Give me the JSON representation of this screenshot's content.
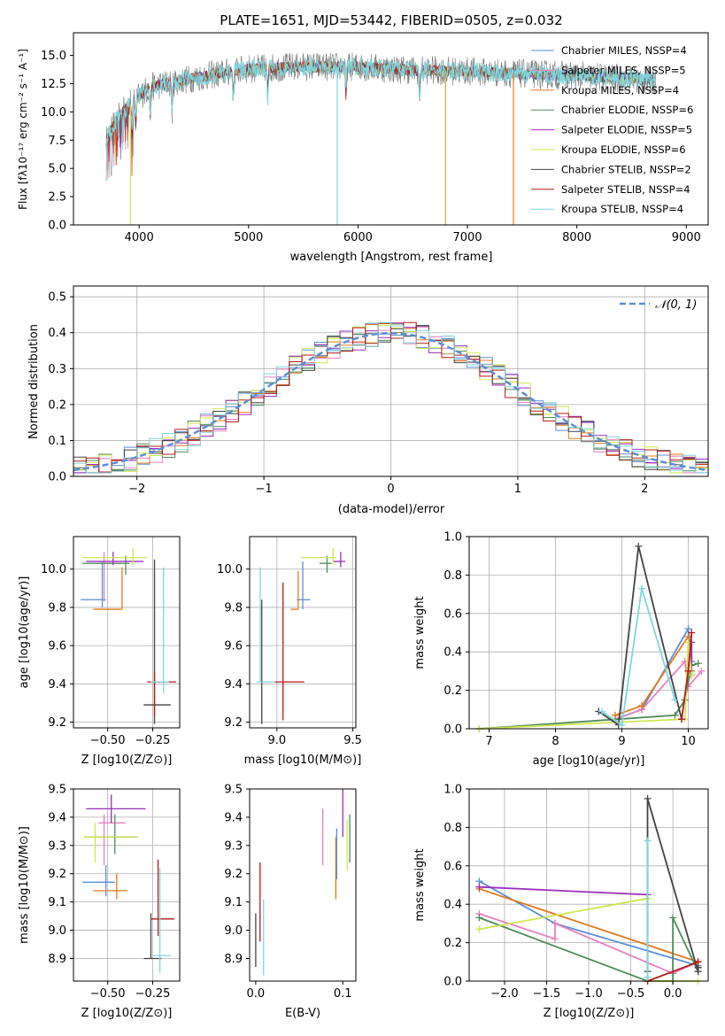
{
  "chart_data": [
    {
      "id": "spectrum",
      "type": "line",
      "title": "PLATE=1651, MJD=53442, FIBERID=0505, z=0.032",
      "xlabel": "wavelength [Angstrom, rest frame]",
      "ylabel": "Flux [fλ10⁻¹⁷ erg cm⁻² s⁻¹ A⁻¹]",
      "xlim": [
        3400,
        9200
      ],
      "ylim": [
        0,
        17
      ],
      "xticks": [
        "4000",
        "5000",
        "6000",
        "7000",
        "8000",
        "9000"
      ],
      "yticks": [
        "0.0",
        "2.5",
        "5.0",
        "7.5",
        "10.0",
        "12.5",
        "15.0"
      ],
      "legend": [
        {
          "name": "Chabrier MILES, NSSP=4",
          "color": "#5b8fd6"
        },
        {
          "name": "Salpeter MILES, NSSP=5",
          "color": "#e87fbf"
        },
        {
          "name": "Kroupa MILES, NSSP=4",
          "color": "#e07b1e"
        },
        {
          "name": "Chabrier ELODIE, NSSP=6",
          "color": "#4f8c58"
        },
        {
          "name": "Salpeter ELODIE, NSSP=5",
          "color": "#9b2fb8"
        },
        {
          "name": "Kroupa ELODIE, NSSP=6",
          "color": "#cfe64f"
        },
        {
          "name": "Chabrier STELIB, NSSP=2",
          "color": "#444444"
        },
        {
          "name": "Salpeter STELIB, NSSP=4",
          "color": "#b51a1a"
        },
        {
          "name": "Kroupa STELIB, NSSP=4",
          "color": "#7fd6dd"
        }
      ],
      "series_trend": {
        "x": [
          3700,
          3800,
          3950,
          4100,
          4500,
          5000,
          5500,
          6000,
          6500,
          7000,
          7420,
          8000,
          8500,
          8700
        ],
        "y": [
          7.5,
          9.5,
          11.0,
          12.2,
          13.0,
          13.8,
          14.0,
          14.0,
          13.7,
          13.6,
          13.4,
          13.2,
          12.9,
          12.8
        ]
      },
      "legend_position": "upper right"
    },
    {
      "id": "residual-histogram",
      "type": "histogram",
      "xlabel": "(data-model)/error",
      "ylabel": "Normed distribution",
      "xlim": [
        -2.5,
        2.5
      ],
      "ylim": [
        0,
        0.53
      ],
      "xticks": [
        "−2",
        "−1",
        "0",
        "1",
        "2"
      ],
      "yticks": [
        "0.0",
        "0.1",
        "0.2",
        "0.3",
        "0.4",
        "0.5"
      ],
      "legend": [
        {
          "name": "𝒩(0, 1)",
          "color": "#5b8fd6",
          "style": "dashed"
        }
      ],
      "legend_position": "upper right",
      "bin_width": 0.1,
      "grid": true
    },
    {
      "id": "age-vs-Z",
      "type": "errorbar",
      "xlabel": "Z [log10(Z/Z⊙)]",
      "ylabel": "age  [log10(age/yr)]",
      "xlim": [
        -0.69,
        -0.1
      ],
      "ylim": [
        9.17,
        10.17
      ],
      "xticks": [
        "−0.50",
        "−0.25"
      ],
      "yticks": [
        "9.2",
        "9.4",
        "9.6",
        "9.8",
        "10.0"
      ],
      "points": [
        {
          "color": "#5b8fd6",
          "x": -0.53,
          "y": 9.84,
          "xerr": [
            0.12,
            0.02
          ],
          "yerr": [
            0.04,
            0.2
          ]
        },
        {
          "color": "#e87fbf",
          "x": -0.52,
          "y": 10.03,
          "xerr": [
            0.04,
            0.1
          ],
          "yerr": [
            0.2,
            0.06
          ]
        },
        {
          "color": "#e07b1e",
          "x": -0.42,
          "y": 9.79,
          "xerr": [
            0.16,
            0.0
          ],
          "yerr": [
            0.0,
            0.22
          ]
        },
        {
          "color": "#4f8c58",
          "x": -0.4,
          "y": 10.03,
          "xerr": [
            0.24,
            0.02
          ],
          "yerr": [
            0.06,
            0.04
          ]
        },
        {
          "color": "#9b2fb8",
          "x": -0.47,
          "y": 10.04,
          "xerr": [
            0.15,
            0.17
          ],
          "yerr": [
            0.02,
            0.05
          ]
        },
        {
          "color": "#cfe64f",
          "x": -0.36,
          "y": 10.06,
          "xerr": [
            0.28,
            0.08
          ],
          "yerr": [
            0.04,
            0.05
          ]
        },
        {
          "color": "#444444",
          "x": -0.24,
          "y": 9.29,
          "xerr": [
            0.06,
            0.09
          ],
          "yerr": [
            0.1,
            0.76
          ]
        },
        {
          "color": "#b51a1a",
          "x": -0.24,
          "y": 9.41,
          "xerr": [
            0.04,
            0.12
          ],
          "yerr": [
            0.18,
            0.05
          ]
        },
        {
          "color": "#7fd6dd",
          "x": -0.19,
          "y": 9.41,
          "xerr": [
            0.07,
            0.03
          ],
          "yerr": [
            0.06,
            0.6
          ]
        }
      ]
    },
    {
      "id": "age-vs-mass",
      "type": "errorbar",
      "xlabel": "mass [log10(M/M⊙)]",
      "ylabel": "",
      "xlim": [
        8.82,
        9.52
      ],
      "ylim": [
        9.17,
        10.17
      ],
      "xticks": [
        "9.0",
        "9.5"
      ],
      "yticks": [
        "9.2",
        "9.4",
        "9.6",
        "9.8",
        "10.0"
      ],
      "points": [
        {
          "color": "#5b8fd6",
          "x": 9.17,
          "y": 9.84,
          "xerr": [
            0.04,
            0.05
          ],
          "yerr": [
            0.05,
            0.2
          ]
        },
        {
          "color": "#e07b1e",
          "x": 9.14,
          "y": 9.79,
          "xerr": [
            0.05,
            0.0
          ],
          "yerr": [
            0.0,
            0.2
          ]
        },
        {
          "color": "#4f8c58",
          "x": 9.33,
          "y": 10.03,
          "xerr": [
            0.05,
            0.03
          ],
          "yerr": [
            0.05,
            0.04
          ]
        },
        {
          "color": "#9b2fb8",
          "x": 9.42,
          "y": 10.04,
          "xerr": [
            0.05,
            0.03
          ],
          "yerr": [
            0.03,
            0.05
          ]
        },
        {
          "color": "#cfe64f",
          "x": 9.37,
          "y": 10.06,
          "xerr": [
            0.21,
            0.02
          ],
          "yerr": [
            0.04,
            0.05
          ]
        },
        {
          "color": "#444444",
          "x": 8.9,
          "y": 9.29,
          "xerr": [
            0.0,
            0.0
          ],
          "yerr": [
            0.1,
            0.55
          ]
        },
        {
          "color": "#b51a1a",
          "x": 9.04,
          "y": 9.41,
          "xerr": [
            0.06,
            0.14
          ],
          "yerr": [
            0.2,
            0.52
          ]
        },
        {
          "color": "#7fd6dd",
          "x": 8.89,
          "y": 9.41,
          "xerr": [
            0.02,
            0.1
          ],
          "yerr": [
            0.0,
            0.6
          ]
        }
      ]
    },
    {
      "id": "mass-weight-vs-age",
      "type": "line",
      "xlabel": "age  [log10(age/yr)]",
      "ylabel": "mass weight",
      "xlim": [
        6.7,
        10.3
      ],
      "ylim": [
        0,
        1
      ],
      "xticks": [
        "7",
        "8",
        "9",
        "10"
      ],
      "yticks": [
        "0.0",
        "0.2",
        "0.4",
        "0.6",
        "0.8",
        "1.0"
      ],
      "series": [
        {
          "color": "#5b8fd6",
          "x": [
            8.9,
            9.3,
            10.0,
            10.05
          ],
          "y": [
            0.05,
            0.1,
            0.52,
            0.35
          ]
        },
        {
          "color": "#e87fbf",
          "x": [
            8.9,
            9.3,
            9.95,
            10.0,
            10.2
          ],
          "y": [
            0.05,
            0.1,
            0.35,
            0.22,
            0.3
          ]
        },
        {
          "color": "#e07b1e",
          "x": [
            8.9,
            9.3,
            10.0,
            10.05
          ],
          "y": [
            0.07,
            0.12,
            0.48,
            0.3
          ]
        },
        {
          "color": "#4f8c58",
          "x": [
            6.85,
            9.8,
            9.95,
            10.05,
            10.15
          ],
          "y": [
            0.0,
            0.07,
            0.15,
            0.33,
            0.34
          ]
        },
        {
          "color": "#9b2fb8",
          "x": [
            10.05,
            10.05
          ],
          "y": [
            0.28,
            0.45
          ]
        },
        {
          "color": "#cfe64f",
          "x": [
            6.85,
            9.95,
            10.0,
            10.05
          ],
          "y": [
            0.0,
            0.05,
            0.45,
            0.28
          ]
        },
        {
          "color": "#444444",
          "x": [
            8.65,
            8.95,
            9.25,
            9.9
          ],
          "y": [
            0.09,
            0.02,
            0.95,
            0.05
          ]
        },
        {
          "color": "#b51a1a",
          "x": [
            9.9,
            10.0,
            10.05
          ],
          "y": [
            0.05,
            0.3,
            0.5
          ]
        },
        {
          "color": "#7fd6dd",
          "x": [
            8.7,
            9.0,
            9.3,
            9.8
          ],
          "y": [
            0.09,
            0.02,
            0.73,
            0.15
          ]
        }
      ]
    },
    {
      "id": "mass-vs-Z",
      "type": "errorbar",
      "xlabel": "Z [log10(Z/Z⊙)]",
      "ylabel": "mass [log10(M/M⊙)]",
      "xlim": [
        -0.69,
        -0.1
      ],
      "ylim": [
        8.82,
        9.5
      ],
      "xticks": [
        "−0.50",
        "−0.25"
      ],
      "yticks": [
        "8.9",
        "9.0",
        "9.1",
        "9.2",
        "9.3",
        "9.4",
        "9.5"
      ],
      "points": [
        {
          "color": "#5b8fd6",
          "x": -0.51,
          "y": 9.17,
          "xerr": [
            0.13,
            0.05
          ],
          "yerr": [
            0.05,
            0.06
          ]
        },
        {
          "color": "#e87fbf",
          "x": -0.52,
          "y": 9.38,
          "xerr": [
            0.03,
            0.12
          ],
          "yerr": [
            0.15,
            0.03
          ]
        },
        {
          "color": "#e07b1e",
          "x": -0.45,
          "y": 9.14,
          "xerr": [
            0.13,
            0.06
          ],
          "yerr": [
            0.03,
            0.06
          ]
        },
        {
          "color": "#4f8c58",
          "x": -0.46,
          "y": 9.33,
          "xerr": [
            0.17,
            0.12
          ],
          "yerr": [
            0.06,
            0.08
          ]
        },
        {
          "color": "#9b2fb8",
          "x": -0.48,
          "y": 9.43,
          "xerr": [
            0.14,
            0.19
          ],
          "yerr": [
            0.05,
            0.05
          ]
        },
        {
          "color": "#cfe64f",
          "x": -0.57,
          "y": 9.33,
          "xerr": [
            0.06,
            0.24
          ],
          "yerr": [
            0.09,
            0.05
          ]
        },
        {
          "color": "#444444",
          "x": -0.26,
          "y": 8.9,
          "xerr": [
            0.04,
            0.06
          ],
          "yerr": [
            0.0,
            0.16
          ]
        },
        {
          "color": "#b51a1a",
          "x": -0.22,
          "y": 9.04,
          "xerr": [
            0.04,
            0.09
          ],
          "yerr": [
            0.06,
            0.21
          ]
        },
        {
          "color": "#7fd6dd",
          "x": -0.21,
          "y": 8.91,
          "xerr": [
            0.04,
            0.06
          ],
          "yerr": [
            0.06,
            0.31
          ]
        }
      ]
    },
    {
      "id": "mass-vs-ebv",
      "type": "errorbar",
      "xlabel": "E(B-V)",
      "ylabel": "",
      "xlim": [
        -0.007,
        0.115
      ],
      "ylim": [
        8.82,
        9.5
      ],
      "xticks": [
        "0.0",
        "0.1"
      ],
      "yticks": [
        "8.9",
        "9.0",
        "9.1",
        "9.2",
        "9.3",
        "9.4",
        "9.5"
      ],
      "points": [
        {
          "color": "#444444",
          "x": 0.0,
          "y": 8.9,
          "yerr": [
            0.03,
            0.16
          ]
        },
        {
          "color": "#b51a1a",
          "x": 0.005,
          "y": 9.04,
          "yerr": [
            0.08,
            0.2
          ]
        },
        {
          "color": "#7fd6dd",
          "x": 0.009,
          "y": 8.91,
          "yerr": [
            0.07,
            0.2
          ]
        },
        {
          "color": "#e87fbf",
          "x": 0.077,
          "y": 9.34,
          "yerr": [
            0.11,
            0.09
          ]
        },
        {
          "color": "#e07b1e",
          "x": 0.092,
          "y": 9.2,
          "yerr": [
            0.09,
            0.13
          ]
        },
        {
          "color": "#5b8fd6",
          "x": 0.093,
          "y": 9.27,
          "yerr": [
            0.09,
            0.09
          ]
        },
        {
          "color": "#9b2fb8",
          "x": 0.1,
          "y": 9.43,
          "yerr": [
            0.1,
            0.07
          ]
        },
        {
          "color": "#cfe64f",
          "x": 0.105,
          "y": 9.3,
          "yerr": [
            0.09,
            0.09
          ]
        },
        {
          "color": "#4f8c58",
          "x": 0.108,
          "y": 9.33,
          "yerr": [
            0.09,
            0.08
          ]
        }
      ]
    },
    {
      "id": "mass-weight-vs-Z",
      "type": "line",
      "xlabel": "Z [log10(Z/Z⊙)]",
      "ylabel": "mass weight",
      "xlim": [
        -2.42,
        0.42
      ],
      "ylim": [
        0,
        1
      ],
      "xticks": [
        "−2.0",
        "−1.5",
        "−1.0",
        "−0.5",
        "0.0"
      ],
      "yticks": [
        "0.0",
        "0.2",
        "0.4",
        "0.6",
        "0.8",
        "1.0"
      ],
      "series": [
        {
          "color": "#5b8fd6",
          "x": [
            -2.3,
            -1.4,
            0.3
          ],
          "y": [
            0.52,
            0.3,
            0.08
          ]
        },
        {
          "color": "#e87fbf",
          "x": [
            -2.3,
            -1.4,
            -1.4,
            0.0,
            0.3
          ],
          "y": [
            0.35,
            0.22,
            0.3,
            0.04,
            0.1
          ]
        },
        {
          "color": "#e07b1e",
          "x": [
            -2.3,
            0.3,
            0.3
          ],
          "y": [
            0.48,
            0.1,
            0.07
          ]
        },
        {
          "color": "#4f8c58",
          "x": [
            -2.3,
            -0.3,
            0.0,
            0.0,
            0.3
          ],
          "y": [
            0.33,
            0.0,
            0.0,
            0.33,
            0.05
          ]
        },
        {
          "color": "#9b2fb8",
          "x": [
            -2.3,
            -0.3
          ],
          "y": [
            0.49,
            0.45
          ]
        },
        {
          "color": "#cfe64f",
          "x": [
            -2.3,
            -0.3,
            -0.3,
            0.3
          ],
          "y": [
            0.27,
            0.43,
            0.0,
            0.0
          ]
        },
        {
          "color": "#444444",
          "x": [
            -0.3,
            -0.3,
            0.3,
            0.3
          ],
          "y": [
            0.05,
            0.95,
            0.05,
            0.07
          ]
        },
        {
          "color": "#b51a1a",
          "x": [
            -0.3,
            0.3
          ],
          "y": [
            0.0,
            0.1
          ]
        },
        {
          "color": "#7fd6dd",
          "x": [
            -0.3,
            -0.3
          ],
          "y": [
            0.02,
            0.73
          ]
        }
      ]
    }
  ]
}
